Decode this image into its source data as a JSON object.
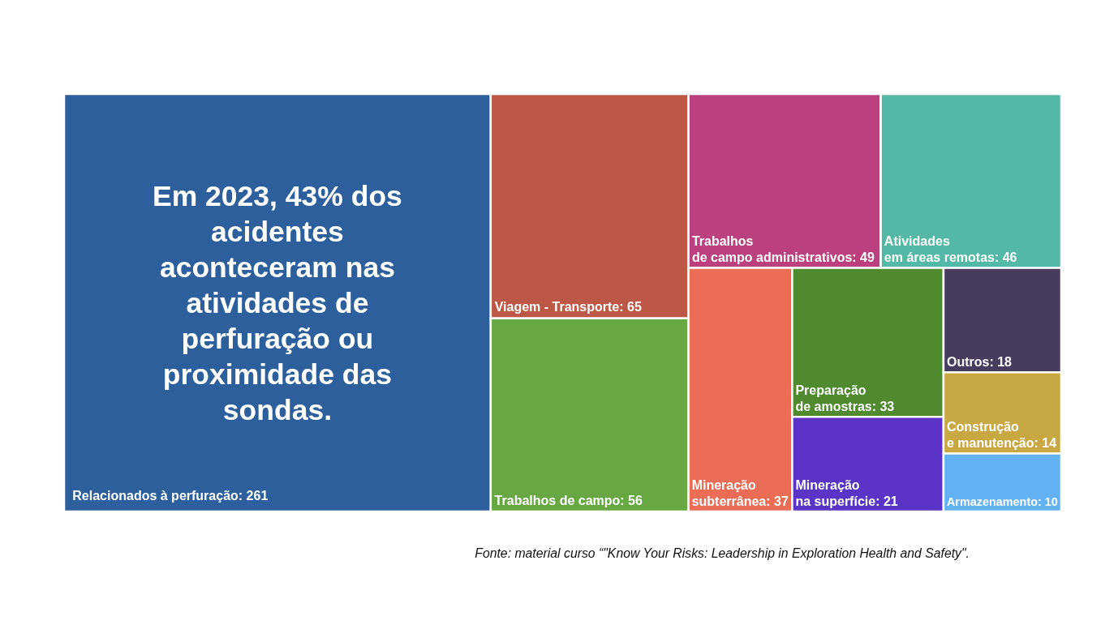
{
  "chart_data": {
    "type": "other",
    "categories": [
      "Relacionados à perfuração",
      "Viagem - Transporte",
      "Trabalhos de campo",
      "Trabalhos de campo administrativos",
      "Atividades em áreas remotas",
      "Mineração subterrânea",
      "Preparação de amostras",
      "Mineração na superfície",
      "Outros",
      "Construção e manutenção",
      "Armazenamento"
    ],
    "values": [
      261,
      65,
      56,
      49,
      46,
      37,
      33,
      21,
      18,
      14,
      10
    ],
    "value_labels": [
      ": 261",
      ": 65",
      ": 56",
      ": 49",
      ": 46",
      ": 37",
      ": 33",
      ": 21",
      ": 18",
      ": 14",
      ": 10"
    ],
    "colors": [
      "#2c5f9b",
      "#bd5846",
      "#67a843",
      "#bb407d",
      "#53b8a5",
      "#eb6d56",
      "#4f8a2f",
      "#5934c6",
      "#483c5e",
      "#c8a843",
      "#62b2f3"
    ],
    "annotations": [
      "Em 2023, 43% dos acidentes aconteceram nas atividades de perfuração ou proximidade das sondas.",
      "Fonte: material curso “\"Know Your Risks: Leadership in Exploration Health and Safety\"."
    ]
  }
}
